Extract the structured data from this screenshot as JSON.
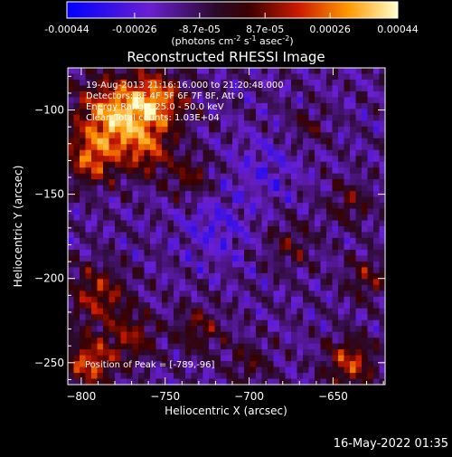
{
  "chart_data": {
    "type": "heatmap",
    "title": "Reconstructed RHESSI Image",
    "xlabel": "Heliocentric X (arcsec)",
    "ylabel": "Heliocentric Y (arcsec)",
    "xlim": [
      -808,
      -619
    ],
    "ylim": [
      -263,
      -75
    ],
    "x_ticks": [
      -800,
      -750,
      -700,
      -650
    ],
    "y_ticks": [
      -100,
      -150,
      -200,
      -250
    ],
    "colorbar": {
      "range": [
        -0.00044,
        0.00044
      ],
      "tick_values": [
        -0.00044,
        -0.00026,
        -8.7e-05,
        8.7e-05,
        0.00026,
        0.00044
      ],
      "tick_labels": [
        "-0.00044",
        "-0.00026",
        "-8.7e-05",
        "8.7e-05",
        "0.00026",
        "0.00044"
      ],
      "label": "(photons cm",
      "label_exp1": "-2",
      "label_mid": " s",
      "label_exp2": "-1",
      "label_end": " asec",
      "label_exp3": "-2",
      "label_close": ")"
    },
    "annotations": [
      "19-Aug-2013 21:16:16.000 to 21:20:48.000",
      "Detectors: 3F 4F 5F 6F 7F 8F, Att 0",
      "Energy Range: 25.0 - 50.0 keV",
      "Clean    Total counts: 1.03E+04"
    ],
    "peak_label": "Position of Peak = [-789,-96]",
    "peak_position": [
      -789,
      -96
    ],
    "blobs": [
      {
        "x": -780,
        "y": -105,
        "amp": 0.00046,
        "s": 16
      },
      {
        "x": -755,
        "y": -95,
        "amp": 0.00036,
        "s": 12
      },
      {
        "x": -795,
        "y": -130,
        "amp": 0.00028,
        "s": 10
      },
      {
        "x": -760,
        "y": -125,
        "amp": 0.00022,
        "s": 10
      },
      {
        "x": -735,
        "y": -140,
        "amp": 0.00018,
        "s": 9
      },
      {
        "x": -665,
        "y": -110,
        "amp": 0.00012,
        "s": 8
      },
      {
        "x": -640,
        "y": -155,
        "amp": 0.00016,
        "s": 9
      },
      {
        "x": -675,
        "y": -180,
        "amp": 0.00014,
        "s": 10
      },
      {
        "x": -630,
        "y": -200,
        "amp": 0.00018,
        "s": 9
      },
      {
        "x": -790,
        "y": -210,
        "amp": 0.00026,
        "s": 12
      },
      {
        "x": -770,
        "y": -235,
        "amp": 0.00022,
        "s": 10
      },
      {
        "x": -795,
        "y": -250,
        "amp": 0.00034,
        "s": 10
      },
      {
        "x": -730,
        "y": -230,
        "amp": 0.00018,
        "s": 10
      },
      {
        "x": -700,
        "y": -250,
        "amp": 0.00014,
        "s": 9
      },
      {
        "x": -640,
        "y": -250,
        "amp": 0.0003,
        "s": 10
      },
      {
        "x": -720,
        "y": -170,
        "amp": -0.00012,
        "s": 14
      },
      {
        "x": -690,
        "y": -135,
        "amp": -0.0001,
        "s": 14
      }
    ]
  },
  "footer": {
    "timestamp": "16-May-2022 01:35"
  }
}
